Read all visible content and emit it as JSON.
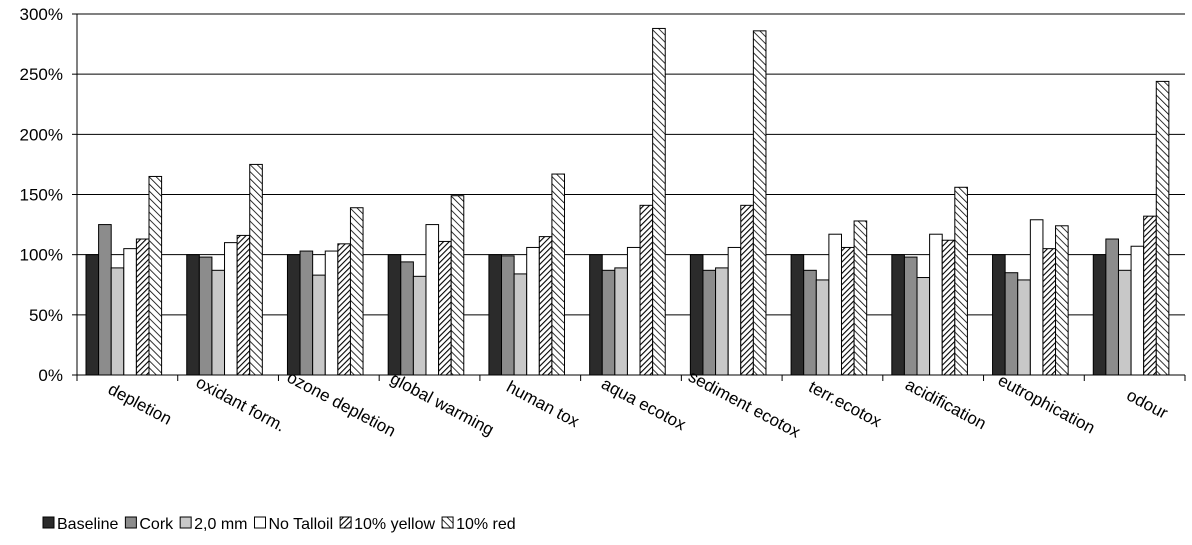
{
  "chart_data": {
    "type": "bar",
    "title": "",
    "xlabel": "",
    "ylabel": "",
    "ylim": [
      0,
      300
    ],
    "y_ticks": [
      "0%",
      "50%",
      "100%",
      "150%",
      "200%",
      "250%",
      "300%"
    ],
    "y_tick_values": [
      0,
      50,
      100,
      150,
      200,
      250,
      300
    ],
    "grid": true,
    "legend_position": "bottom-left",
    "categories": [
      "depletion",
      "oxidant form.",
      "ozone depletion",
      "global warming",
      "human tox",
      "aqua ecotox",
      "sediment ecotox",
      "terr.ecotox",
      "acidification",
      "eutrophication",
      "odour"
    ],
    "series": [
      {
        "name": "Baseline",
        "fill": "#2b2b2b",
        "pattern": "solid",
        "values": [
          100,
          100,
          100,
          100,
          100,
          100,
          100,
          100,
          100,
          100,
          100
        ]
      },
      {
        "name": "Cork",
        "fill": "#8c8c8c",
        "pattern": "solid",
        "values": [
          125,
          98,
          103,
          94,
          99,
          87,
          87,
          87,
          98,
          85,
          113
        ]
      },
      {
        "name": "2,0 mm",
        "fill": "#c8c8c8",
        "pattern": "solid",
        "values": [
          89,
          87,
          83,
          82,
          84,
          89,
          89,
          79,
          81,
          79,
          87
        ]
      },
      {
        "name": "No Talloil",
        "fill": "#ffffff",
        "pattern": "solid",
        "values": [
          105,
          110,
          103,
          125,
          106,
          106,
          106,
          117,
          117,
          129,
          107
        ]
      },
      {
        "name": "10% yellow",
        "fill": "#ffffff",
        "pattern": "dense-diagonal",
        "values": [
          113,
          116,
          109,
          111,
          115,
          141,
          141,
          106,
          112,
          105,
          132
        ]
      },
      {
        "name": "10% red",
        "fill": "#ffffff",
        "pattern": "sparse-diagonal",
        "values": [
          165,
          175,
          139,
          149,
          167,
          288,
          286,
          128,
          156,
          124,
          244
        ]
      }
    ]
  }
}
